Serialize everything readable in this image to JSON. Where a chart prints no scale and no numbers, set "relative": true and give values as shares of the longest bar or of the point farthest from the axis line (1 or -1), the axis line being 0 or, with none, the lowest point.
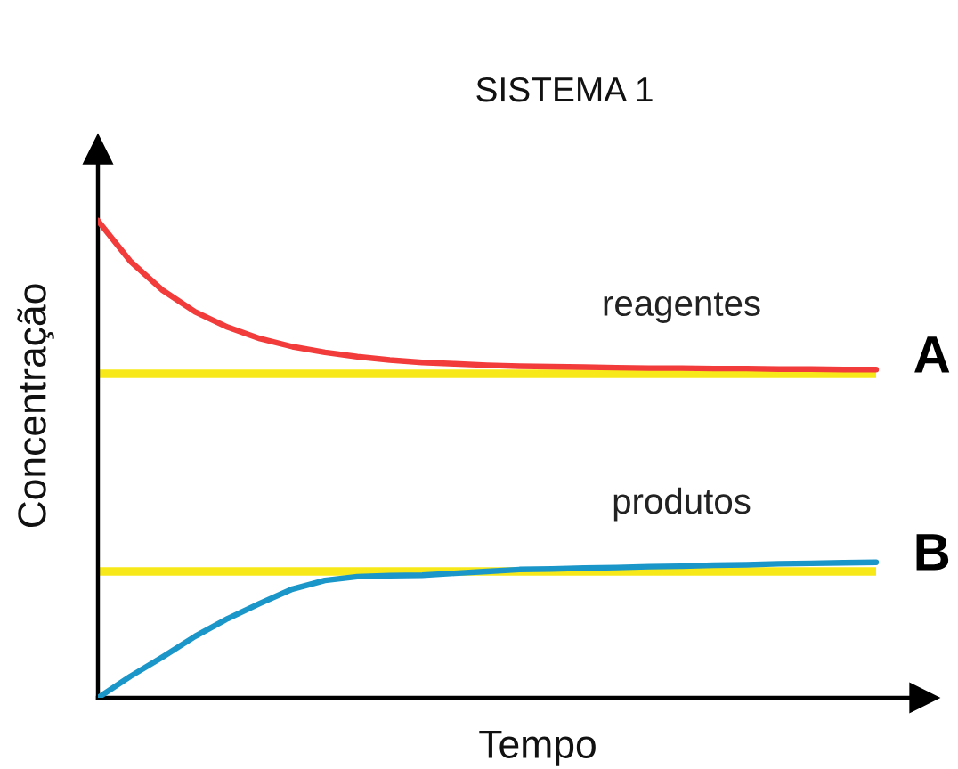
{
  "chart_data": {
    "type": "line",
    "title": "SISTEMA 1",
    "xlabel": "Tempo",
    "ylabel": "Concentração",
    "relative": true,
    "categories": [
      null,
      null,
      null,
      null,
      null,
      null,
      null,
      null,
      null,
      null,
      null,
      null,
      null,
      null,
      null,
      null,
      null,
      null,
      null,
      null,
      null,
      null,
      null,
      null,
      null
    ],
    "series": [
      {
        "name": "reagentes",
        "color": "#f23c3c",
        "values": [
          1,
          0.915,
          0.854,
          0.809,
          0.777,
          0.753,
          0.736,
          0.724,
          0.715,
          0.708,
          0.703,
          0.7,
          0.697,
          0.695,
          0.694,
          0.693,
          0.692,
          0.691,
          0.691,
          0.69,
          0.69,
          0.689,
          0.689,
          0.688,
          0.688
        ]
      },
      {
        "name": "produtos",
        "color": "#1b96c8",
        "values": [
          0,
          0.045,
          0.086,
          0.129,
          0.166,
          0.198,
          0.228,
          0.246,
          0.254,
          0.256,
          0.257,
          0.261,
          0.265,
          0.269,
          0.27,
          0.272,
          0.273,
          0.275,
          0.276,
          0.278,
          0.279,
          0.281,
          0.282,
          0.283,
          0.284
        ]
      }
    ],
    "ref_lines": [
      {
        "axis": "y",
        "value": 0.679,
        "label": "A",
        "color": "#f7e819"
      },
      {
        "axis": "y",
        "value": 0.265,
        "label": "B",
        "color": "#f7e819"
      }
    ]
  }
}
